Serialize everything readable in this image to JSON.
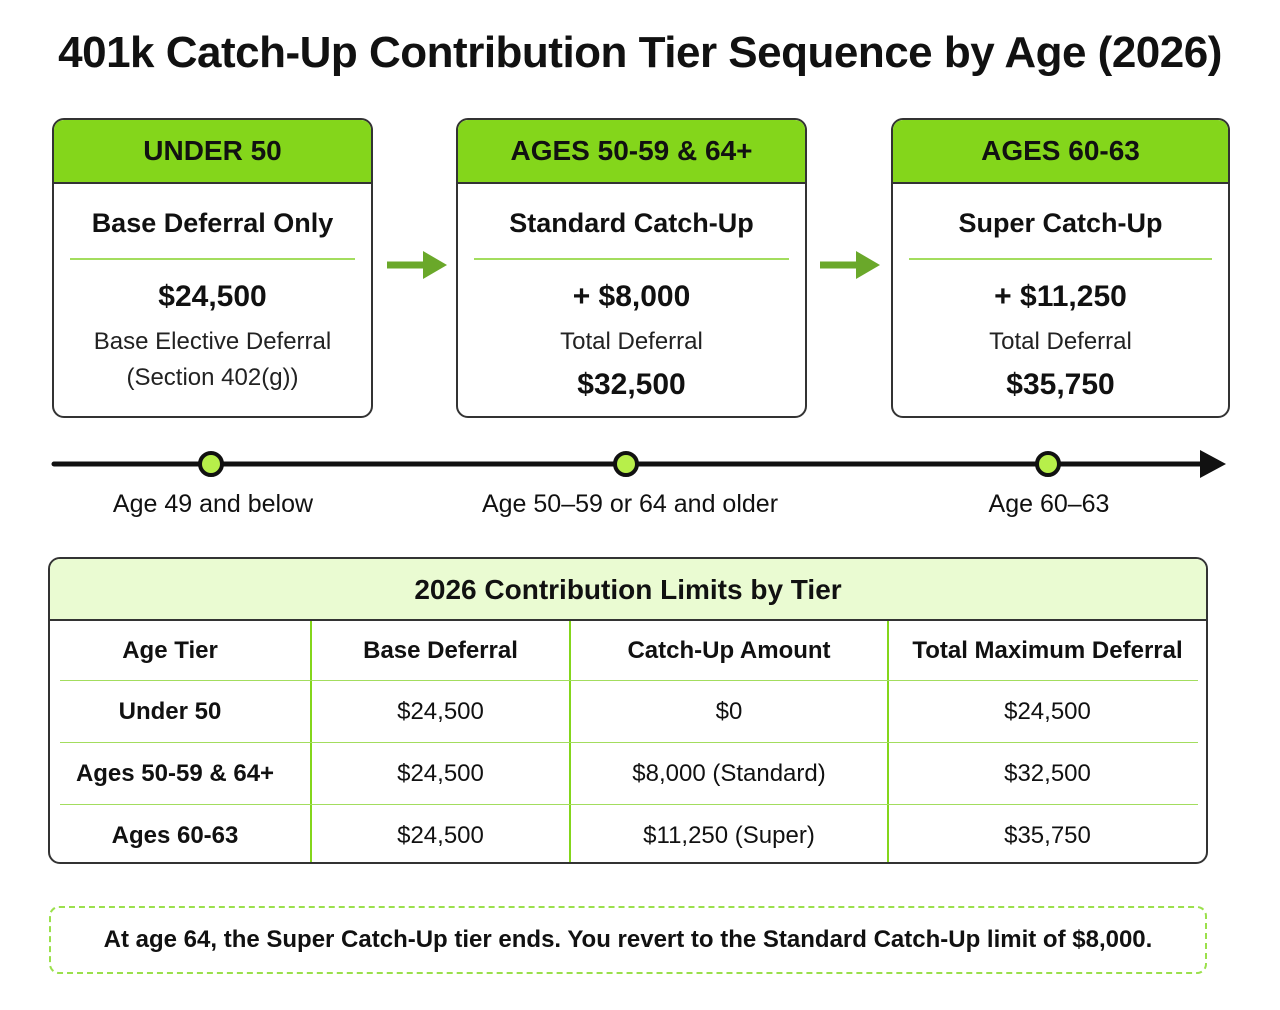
{
  "title": "401k Catch-Up Contribution Tier Sequence by Age (2026)",
  "tiers": [
    {
      "header": "UNDER 50",
      "subtitle": "Base Deferral Only",
      "amount": "$24,500",
      "caption_line1": "Base Elective Deferral",
      "caption_line2": "(Section 402(g))"
    },
    {
      "header": "AGES 50-59 & 64+",
      "subtitle": "Standard Catch-Up",
      "amount": "+ $8,000",
      "caption": "Total Deferral",
      "total": "$32,500"
    },
    {
      "header": "AGES 60-63",
      "subtitle": "Super Catch-Up",
      "amount": "+ $11,250",
      "caption": "Total Deferral",
      "total": "$35,750"
    }
  ],
  "timeline": {
    "labels": [
      "Age 49 and below",
      "Age 50–59 or 64 and older",
      "Age 60–63"
    ]
  },
  "limits": {
    "title": "2026 Contribution Limits by Tier",
    "headers": [
      "Age Tier",
      "Base Deferral",
      "Catch-Up Amount",
      "Total Maximum Deferral"
    ],
    "rows": [
      [
        "Under 50",
        "$24,500",
        "$0",
        "$24,500"
      ],
      [
        "Ages 50-59 & 64+",
        "$24,500",
        "$8,000 (Standard)",
        "$32,500"
      ],
      [
        "Ages 60-63",
        "$24,500",
        "$11,250 (Super)",
        "$35,750"
      ]
    ]
  },
  "note": "At age 64, the Super Catch-Up tier ends. You revert to the Standard Catch-Up limit of $8,000.",
  "colors": {
    "accent_green": "#84d61b",
    "light_green": "#eafbd2",
    "arrow_green": "#6aa82a",
    "border": "#333333"
  }
}
